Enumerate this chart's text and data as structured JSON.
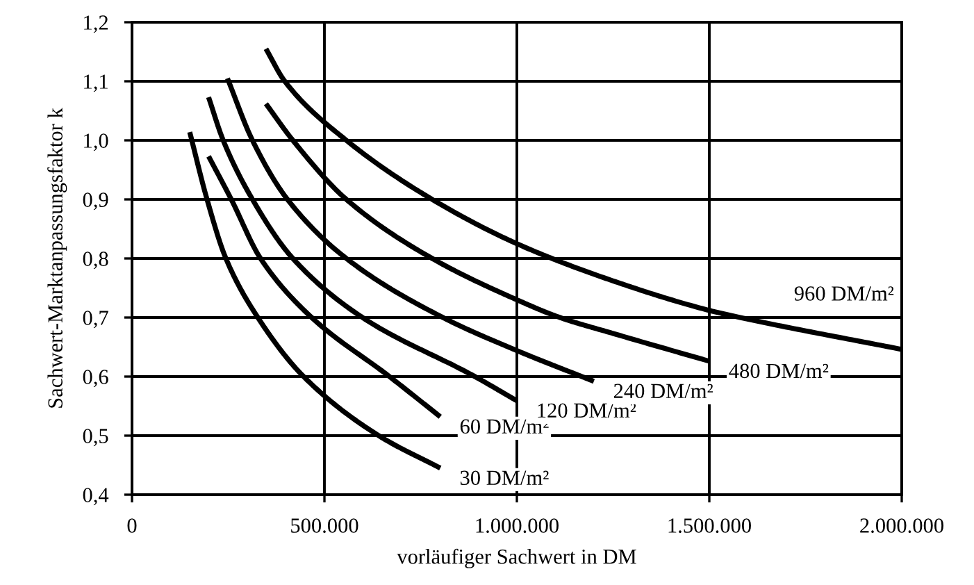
{
  "chart_data": {
    "type": "line",
    "xlabel": "vorläufiger Sachwert in DM",
    "ylabel": "Sachwert-Marktanpassungsfaktor k",
    "xlim": [
      0,
      2000000
    ],
    "xticks": [
      0,
      {
        "value": 500000,
        "label": "500.000"
      },
      {
        "value": 1000000,
        "label": "1.000.000"
      },
      {
        "value": 1500000,
        "label": "1.500.000"
      },
      {
        "value": 2000000,
        "label": "2.000.000"
      }
    ],
    "ylim": [
      0.4,
      1.2
    ],
    "yticks": [
      {
        "value": 0.4,
        "label": "0,4"
      },
      {
        "value": 0.5,
        "label": "0,5"
      },
      {
        "value": 0.6,
        "label": "0,6"
      },
      {
        "value": 0.7,
        "label": "0,7"
      },
      {
        "value": 0.8,
        "label": "0,8"
      },
      {
        "value": 0.9,
        "label": "0,9"
      },
      {
        "value": 1.0,
        "label": "1,0"
      },
      {
        "value": 1.1,
        "label": "1,1"
      },
      {
        "value": 1.2,
        "label": "1,2"
      }
    ],
    "grid": true,
    "marker": "none",
    "line_style": "solid",
    "series": [
      {
        "name": "30 DM/m²",
        "color": "#000000",
        "x": [
          150000,
          195000,
          244000,
          327000,
          446000,
          641000,
          801000
        ],
        "values": [
          1.014,
          0.9,
          0.8,
          0.7,
          0.6,
          0.5,
          0.445
        ]
      },
      {
        "name": "60 DM/m²",
        "color": "#000000",
        "x": [
          199000,
          258000,
          334000,
          467000,
          669000,
          801000
        ],
        "values": [
          0.973,
          0.9,
          0.8,
          0.7,
          0.6,
          0.532
        ]
      },
      {
        "name": "120 DM/m²",
        "color": "#000000",
        "x": [
          199000,
          237000,
          313000,
          418000,
          599000,
          891000,
          1000000
        ],
        "values": [
          1.073,
          1.0,
          0.9,
          0.8,
          0.7,
          0.6,
          0.559
        ]
      },
      {
        "name": "240 DM/m²",
        "color": "#000000",
        "x": [
          248000,
          313000,
          404000,
          557000,
          808000,
          1000000,
          1200000
        ],
        "values": [
          1.105,
          1.0,
          0.9,
          0.8,
          0.7,
          0.644,
          0.592
        ]
      },
      {
        "name": "480 DM/m²",
        "color": "#000000",
        "x": [
          348000,
          418000,
          557000,
          780000,
          1000000,
          1112000,
          1250000,
          1500000
        ],
        "values": [
          1.062,
          1.0,
          0.9,
          0.8,
          0.73,
          0.7,
          0.673,
          0.626
        ]
      },
      {
        "name": "960 DM/m²",
        "color": "#000000",
        "x": [
          348000,
          397000,
          557000,
          780000,
          1000000,
          1250000,
          1500000,
          1580000,
          2000000
        ],
        "values": [
          1.155,
          1.1,
          1.0,
          0.9,
          0.825,
          0.762,
          0.712,
          0.7,
          0.646
        ]
      }
    ]
  }
}
